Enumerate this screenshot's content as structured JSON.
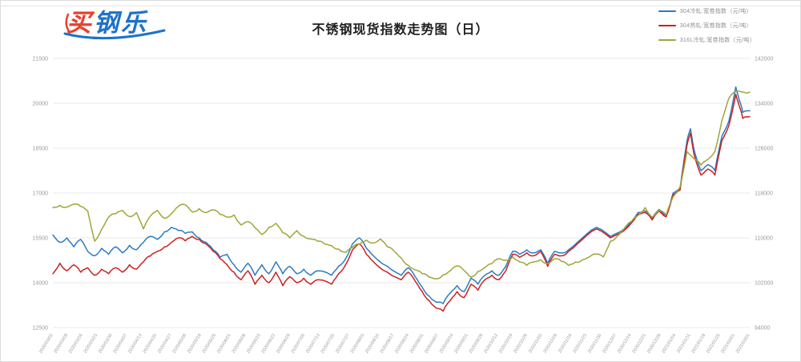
{
  "logo": {
    "part1": "买",
    "part2": "钢乐"
  },
  "title": "不锈钢现货指数走势图（日）",
  "chart_data": {
    "type": "line",
    "title": "不锈钢现货指数走势图（日）",
    "legend_position": "top-right",
    "grid": "horizontal",
    "axes": {
      "left": {
        "min": 12500,
        "max": 21500,
        "ticks": [
          "21500",
          "20000",
          "18500",
          "17000",
          "15500",
          "14000",
          "12500"
        ]
      },
      "right": {
        "min": 94000,
        "max": 142000,
        "ticks": [
          "142000",
          "134000",
          "126000",
          "118000",
          "110000",
          "102000",
          "94000"
        ]
      }
    },
    "x_labels": [
      "2020/03/02",
      "2020/03/09",
      "2020/03/16",
      "2020/03/23",
      "2020/03/30",
      "2020/04/07",
      "2020/04/13",
      "2020/04/20",
      "2020/04/27",
      "2020/05/06",
      "2020/05/18",
      "2020/05/25",
      "2020/06/01",
      "2020/06/08",
      "2020/06/15",
      "2020/06/22",
      "2020/06/29",
      "2020/07/06",
      "2020/07/13",
      "2020/07/20",
      "2020/07/27",
      "2020/08/03",
      "2020/08/10",
      "2020/08/17",
      "2020/08/24",
      "2020/08/31",
      "2020/09/07",
      "2020/09/14",
      "2020/09/21",
      "2020/09/28",
      "2020/10/12",
      "2020/10/19",
      "2020/10/26",
      "2020/11/02",
      "2020/11/09",
      "2020/11/16",
      "2020/11/23",
      "2020/11/30",
      "2020/12/07",
      "2020/12/14",
      "2020/12/21",
      "2020/12/28",
      "2021/01/04",
      "2021/01/11",
      "2021/01/18",
      "2021/01/25",
      "2021/02/01",
      "2021/03/01"
    ],
    "series": [
      {
        "name": "304冷轧:宽卷指数（元/吨）",
        "color": "#2b7bc4",
        "axis": "left",
        "points": [
          [
            0,
            15600
          ],
          [
            1,
            15350
          ],
          [
            2,
            15500
          ],
          [
            3,
            15200
          ],
          [
            4,
            15450
          ],
          [
            5,
            15050
          ],
          [
            6,
            14900
          ],
          [
            7,
            15150
          ],
          [
            8,
            14950
          ],
          [
            9,
            15200
          ],
          [
            10,
            15000
          ],
          [
            11,
            15250
          ],
          [
            12,
            15100
          ],
          [
            13,
            15350
          ],
          [
            14,
            15550
          ],
          [
            15,
            15450
          ],
          [
            16,
            15700
          ],
          [
            17,
            15850
          ],
          [
            18,
            15750
          ],
          [
            19,
            15650
          ],
          [
            20,
            15700
          ],
          [
            21,
            15500
          ],
          [
            22,
            15350
          ],
          [
            23,
            15100
          ],
          [
            24,
            14850
          ],
          [
            25,
            14950
          ],
          [
            26,
            14600
          ],
          [
            27,
            14350
          ],
          [
            28,
            14650
          ],
          [
            29,
            14250
          ],
          [
            30,
            14600
          ],
          [
            31,
            14300
          ],
          [
            32,
            14700
          ],
          [
            33,
            14300
          ],
          [
            34,
            14550
          ],
          [
            35,
            14300
          ],
          [
            36,
            14450
          ],
          [
            37,
            14250
          ],
          [
            38,
            14400
          ],
          [
            40,
            14250
          ],
          [
            41,
            14550
          ],
          [
            42,
            14800
          ],
          [
            43,
            15300
          ],
          [
            44,
            15500
          ],
          [
            45,
            15150
          ],
          [
            46,
            14900
          ],
          [
            48,
            14550
          ],
          [
            50,
            14250
          ],
          [
            51,
            14500
          ],
          [
            52,
            14200
          ],
          [
            53,
            13850
          ],
          [
            54,
            13550
          ],
          [
            55,
            13350
          ],
          [
            56,
            13300
          ],
          [
            57,
            13650
          ],
          [
            58,
            13900
          ],
          [
            59,
            13700
          ],
          [
            60,
            14150
          ],
          [
            61,
            13950
          ],
          [
            62,
            14250
          ],
          [
            63,
            14400
          ],
          [
            64,
            14250
          ],
          [
            65,
            14550
          ],
          [
            66,
            15050
          ],
          [
            67,
            14950
          ],
          [
            68,
            15100
          ],
          [
            69,
            15000
          ],
          [
            70,
            15100
          ],
          [
            71,
            14650
          ],
          [
            72,
            15050
          ],
          [
            73,
            15000
          ],
          [
            74,
            15100
          ],
          [
            76,
            15500
          ],
          [
            78,
            15850
          ],
          [
            80,
            15550
          ],
          [
            82,
            15800
          ],
          [
            84,
            16350
          ],
          [
            85,
            16400
          ],
          [
            86,
            16150
          ],
          [
            87,
            16450
          ],
          [
            88,
            16250
          ],
          [
            89,
            17000
          ],
          [
            90,
            17150
          ],
          [
            91,
            18750
          ],
          [
            91.5,
            19150
          ],
          [
            92,
            18450
          ],
          [
            93,
            17750
          ],
          [
            94,
            17950
          ],
          [
            95,
            17750
          ],
          [
            96,
            18900
          ],
          [
            97,
            19400
          ],
          [
            98,
            20550
          ],
          [
            98.5,
            20100
          ],
          [
            99,
            19700
          ],
          [
            100,
            19750
          ]
        ]
      },
      {
        "name": "304热轧:宽卷指数（元/吨）",
        "color": "#cc2020",
        "axis": "left",
        "points": [
          [
            0,
            14300
          ],
          [
            1,
            14650
          ],
          [
            2,
            14400
          ],
          [
            3,
            14600
          ],
          [
            4,
            14350
          ],
          [
            5,
            14500
          ],
          [
            6,
            14250
          ],
          [
            7,
            14450
          ],
          [
            8,
            14300
          ],
          [
            9,
            14500
          ],
          [
            10,
            14350
          ],
          [
            11,
            14600
          ],
          [
            12,
            14450
          ],
          [
            13,
            14700
          ],
          [
            14,
            14900
          ],
          [
            15,
            15050
          ],
          [
            16,
            15200
          ],
          [
            17,
            15350
          ],
          [
            18,
            15500
          ],
          [
            19,
            15400
          ],
          [
            20,
            15550
          ],
          [
            21,
            15450
          ],
          [
            22,
            15300
          ],
          [
            23,
            15050
          ],
          [
            24,
            14800
          ],
          [
            25,
            14600
          ],
          [
            26,
            14350
          ],
          [
            27,
            14100
          ],
          [
            28,
            14400
          ],
          [
            29,
            13950
          ],
          [
            30,
            14250
          ],
          [
            31,
            14000
          ],
          [
            32,
            14350
          ],
          [
            33,
            13900
          ],
          [
            34,
            14200
          ],
          [
            35,
            14000
          ],
          [
            36,
            14150
          ],
          [
            37,
            13950
          ],
          [
            38,
            14100
          ],
          [
            40,
            13950
          ],
          [
            41,
            14300
          ],
          [
            42,
            14600
          ],
          [
            43,
            15100
          ],
          [
            44,
            15300
          ],
          [
            45,
            14950
          ],
          [
            46,
            14700
          ],
          [
            48,
            14350
          ],
          [
            50,
            14100
          ],
          [
            51,
            14350
          ],
          [
            52,
            14050
          ],
          [
            53,
            13700
          ],
          [
            54,
            13400
          ],
          [
            55,
            13150
          ],
          [
            56,
            13050
          ],
          [
            57,
            13400
          ],
          [
            58,
            13700
          ],
          [
            59,
            13500
          ],
          [
            60,
            13950
          ],
          [
            61,
            13750
          ],
          [
            62,
            14100
          ],
          [
            63,
            14250
          ],
          [
            64,
            14100
          ],
          [
            65,
            14400
          ],
          [
            66,
            14950
          ],
          [
            67,
            14850
          ],
          [
            68,
            15000
          ],
          [
            69,
            14900
          ],
          [
            70,
            15050
          ],
          [
            71,
            14550
          ],
          [
            72,
            14950
          ],
          [
            73,
            14900
          ],
          [
            74,
            15050
          ],
          [
            76,
            15450
          ],
          [
            78,
            15800
          ],
          [
            80,
            15500
          ],
          [
            82,
            15750
          ],
          [
            84,
            16300
          ],
          [
            85,
            16350
          ],
          [
            86,
            16100
          ],
          [
            87,
            16400
          ],
          [
            88,
            16200
          ],
          [
            89,
            16950
          ],
          [
            90,
            17100
          ],
          [
            91,
            18600
          ],
          [
            91.5,
            19000
          ],
          [
            92,
            18300
          ],
          [
            93,
            17600
          ],
          [
            94,
            17800
          ],
          [
            95,
            17600
          ],
          [
            96,
            18750
          ],
          [
            97,
            19250
          ],
          [
            98,
            20300
          ],
          [
            98.5,
            19900
          ],
          [
            99,
            19500
          ],
          [
            100,
            19550
          ]
        ]
      },
      {
        "name": "316L冷轧:宽卷指数（元/吨）",
        "color": "#9fa63a",
        "axis": "right",
        "points": [
          [
            0,
            115400
          ],
          [
            1,
            115800
          ],
          [
            2,
            115500
          ],
          [
            3,
            116000
          ],
          [
            4,
            115600
          ],
          [
            5,
            114800
          ],
          [
            6,
            109400
          ],
          [
            7,
            111500
          ],
          [
            8,
            113700
          ],
          [
            9,
            114300
          ],
          [
            10,
            114900
          ],
          [
            11,
            113800
          ],
          [
            12,
            114500
          ],
          [
            13,
            111600
          ],
          [
            14,
            113900
          ],
          [
            15,
            114900
          ],
          [
            16,
            113500
          ],
          [
            17,
            114300
          ],
          [
            18,
            115600
          ],
          [
            19,
            115900
          ],
          [
            20,
            114600
          ],
          [
            21,
            115200
          ],
          [
            22,
            114500
          ],
          [
            23,
            115000
          ],
          [
            24,
            114200
          ],
          [
            25,
            113700
          ],
          [
            26,
            114100
          ],
          [
            27,
            112300
          ],
          [
            28,
            112900
          ],
          [
            29,
            111800
          ],
          [
            30,
            110600
          ],
          [
            31,
            111900
          ],
          [
            32,
            112600
          ],
          [
            33,
            110900
          ],
          [
            34,
            110000
          ],
          [
            35,
            111300
          ],
          [
            36,
            110300
          ],
          [
            37,
            109800
          ],
          [
            38,
            109400
          ],
          [
            39,
            108900
          ],
          [
            40,
            108600
          ],
          [
            41,
            108000
          ],
          [
            42,
            107400
          ],
          [
            43,
            108300
          ],
          [
            44,
            108900
          ],
          [
            45,
            109600
          ],
          [
            46,
            109100
          ],
          [
            47,
            109800
          ],
          [
            48,
            108400
          ],
          [
            49,
            107600
          ],
          [
            50,
            106400
          ],
          [
            51,
            105100
          ],
          [
            52,
            104300
          ],
          [
            53,
            103600
          ],
          [
            54,
            103000
          ],
          [
            55,
            102700
          ],
          [
            56,
            103400
          ],
          [
            57,
            104100
          ],
          [
            58,
            105000
          ],
          [
            59,
            104200
          ],
          [
            60,
            103000
          ],
          [
            61,
            104000
          ],
          [
            62,
            104700
          ],
          [
            63,
            105400
          ],
          [
            64,
            106300
          ],
          [
            65,
            106000
          ],
          [
            66,
            106600
          ],
          [
            67,
            105700
          ],
          [
            68,
            105100
          ],
          [
            69,
            105700
          ],
          [
            70,
            106100
          ],
          [
            71,
            105400
          ],
          [
            72,
            106300
          ],
          [
            73,
            105800
          ],
          [
            74,
            105100
          ],
          [
            75,
            105700
          ],
          [
            76,
            106100
          ],
          [
            77,
            106600
          ],
          [
            78,
            107100
          ],
          [
            79,
            106600
          ],
          [
            80,
            109400
          ],
          [
            81,
            110300
          ],
          [
            82,
            111700
          ],
          [
            83,
            112900
          ],
          [
            84,
            114000
          ],
          [
            85,
            115400
          ],
          [
            86,
            113700
          ],
          [
            87,
            114900
          ],
          [
            88,
            114100
          ],
          [
            89,
            117300
          ],
          [
            90,
            119100
          ],
          [
            91,
            125400
          ],
          [
            92,
            124100
          ],
          [
            93,
            123000
          ],
          [
            94,
            124000
          ],
          [
            95,
            125400
          ],
          [
            96,
            130900
          ],
          [
            97,
            134900
          ],
          [
            98,
            136100
          ],
          [
            99,
            136000
          ],
          [
            100,
            136000
          ]
        ]
      }
    ]
  }
}
